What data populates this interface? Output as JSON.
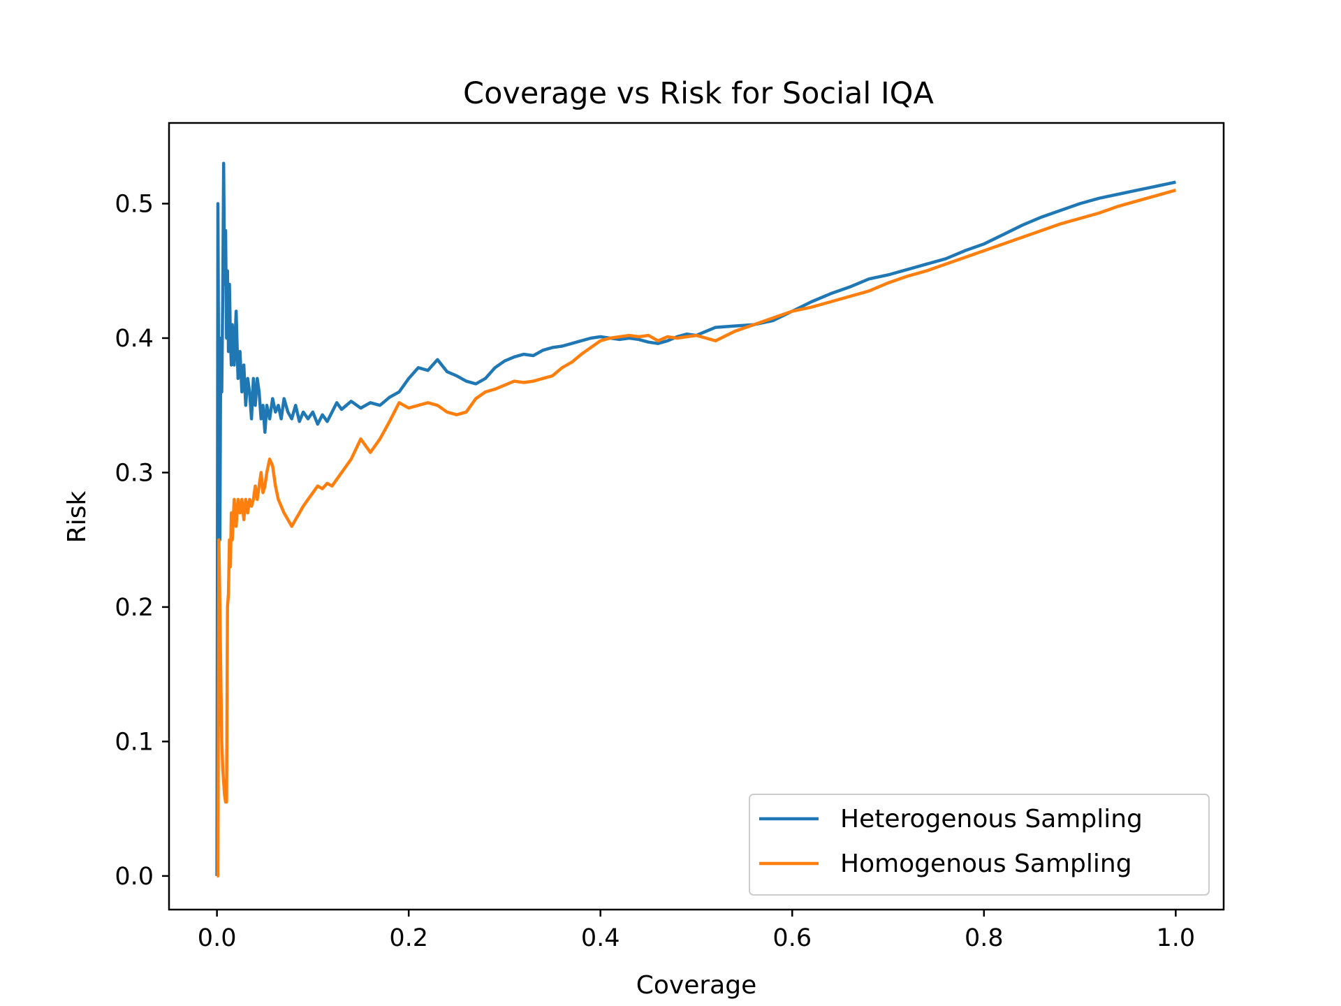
{
  "chart_data": {
    "type": "line",
    "title": "Coverage vs Risk for Social IQA",
    "xlabel": "Coverage",
    "ylabel": "Risk",
    "xlim": [
      -0.05,
      1.05
    ],
    "ylim": [
      -0.025,
      0.56
    ],
    "xticks": [
      0.0,
      0.2,
      0.4,
      0.6,
      0.8,
      1.0
    ],
    "xtick_labels": [
      "0.0",
      "0.2",
      "0.4",
      "0.6",
      "0.8",
      "1.0"
    ],
    "yticks": [
      0.0,
      0.1,
      0.2,
      0.3,
      0.4,
      0.5
    ],
    "ytick_labels": [
      "0.0",
      "0.1",
      "0.2",
      "0.3",
      "0.4",
      "0.5"
    ],
    "grid": false,
    "legend_position": "lower-right",
    "series": [
      {
        "name": "Heterogenous Sampling",
        "color": "#1f77b4",
        "x": [
          0.0,
          0.001,
          0.002,
          0.003,
          0.004,
          0.005,
          0.006,
          0.007,
          0.008,
          0.009,
          0.01,
          0.011,
          0.012,
          0.013,
          0.014,
          0.015,
          0.016,
          0.018,
          0.02,
          0.022,
          0.024,
          0.026,
          0.028,
          0.03,
          0.032,
          0.034,
          0.036,
          0.038,
          0.04,
          0.042,
          0.044,
          0.046,
          0.048,
          0.05,
          0.052,
          0.055,
          0.058,
          0.061,
          0.064,
          0.067,
          0.07,
          0.074,
          0.078,
          0.082,
          0.086,
          0.09,
          0.095,
          0.1,
          0.105,
          0.11,
          0.115,
          0.12,
          0.125,
          0.13,
          0.14,
          0.15,
          0.16,
          0.17,
          0.18,
          0.19,
          0.2,
          0.21,
          0.22,
          0.23,
          0.24,
          0.25,
          0.26,
          0.27,
          0.28,
          0.29,
          0.3,
          0.31,
          0.32,
          0.33,
          0.34,
          0.35,
          0.36,
          0.37,
          0.38,
          0.39,
          0.4,
          0.41,
          0.42,
          0.43,
          0.44,
          0.45,
          0.46,
          0.47,
          0.48,
          0.49,
          0.5,
          0.52,
          0.54,
          0.56,
          0.58,
          0.6,
          0.62,
          0.64,
          0.66,
          0.68,
          0.7,
          0.72,
          0.74,
          0.76,
          0.78,
          0.8,
          0.82,
          0.84,
          0.86,
          0.88,
          0.9,
          0.92,
          0.94,
          0.96,
          0.98,
          1.0
        ],
        "y": [
          0.0,
          0.5,
          0.33,
          0.25,
          0.4,
          0.36,
          0.43,
          0.53,
          0.44,
          0.48,
          0.4,
          0.45,
          0.39,
          0.44,
          0.4,
          0.38,
          0.41,
          0.38,
          0.42,
          0.37,
          0.39,
          0.36,
          0.38,
          0.35,
          0.37,
          0.36,
          0.34,
          0.37,
          0.35,
          0.37,
          0.36,
          0.34,
          0.35,
          0.33,
          0.35,
          0.34,
          0.355,
          0.345,
          0.35,
          0.34,
          0.355,
          0.345,
          0.34,
          0.35,
          0.338,
          0.345,
          0.34,
          0.345,
          0.336,
          0.343,
          0.338,
          0.345,
          0.352,
          0.347,
          0.353,
          0.348,
          0.352,
          0.35,
          0.356,
          0.36,
          0.37,
          0.378,
          0.376,
          0.384,
          0.375,
          0.372,
          0.368,
          0.366,
          0.37,
          0.378,
          0.383,
          0.386,
          0.388,
          0.387,
          0.391,
          0.393,
          0.394,
          0.396,
          0.398,
          0.4,
          0.401,
          0.4,
          0.399,
          0.4,
          0.399,
          0.397,
          0.396,
          0.398,
          0.401,
          0.403,
          0.402,
          0.408,
          0.409,
          0.41,
          0.413,
          0.42,
          0.427,
          0.433,
          0.438,
          0.444,
          0.447,
          0.451,
          0.455,
          0.459,
          0.465,
          0.47,
          0.477,
          0.484,
          0.49,
          0.495,
          0.5,
          0.504,
          0.507,
          0.51,
          0.513,
          0.516
        ]
      },
      {
        "name": "Homogenous Sampling",
        "color": "#ff7f0e",
        "x": [
          0.0,
          0.001,
          0.002,
          0.003,
          0.004,
          0.005,
          0.006,
          0.007,
          0.008,
          0.009,
          0.01,
          0.011,
          0.012,
          0.013,
          0.014,
          0.015,
          0.016,
          0.018,
          0.02,
          0.022,
          0.024,
          0.026,
          0.028,
          0.03,
          0.032,
          0.034,
          0.036,
          0.038,
          0.04,
          0.042,
          0.044,
          0.046,
          0.048,
          0.05,
          0.052,
          0.055,
          0.058,
          0.061,
          0.064,
          0.067,
          0.07,
          0.074,
          0.078,
          0.082,
          0.086,
          0.09,
          0.095,
          0.1,
          0.105,
          0.11,
          0.115,
          0.12,
          0.125,
          0.13,
          0.14,
          0.15,
          0.16,
          0.17,
          0.18,
          0.19,
          0.2,
          0.21,
          0.22,
          0.23,
          0.24,
          0.25,
          0.26,
          0.27,
          0.28,
          0.29,
          0.3,
          0.31,
          0.32,
          0.33,
          0.34,
          0.35,
          0.36,
          0.37,
          0.38,
          0.39,
          0.4,
          0.41,
          0.42,
          0.43,
          0.44,
          0.45,
          0.46,
          0.47,
          0.48,
          0.49,
          0.5,
          0.52,
          0.54,
          0.56,
          0.58,
          0.6,
          0.62,
          0.64,
          0.66,
          0.68,
          0.7,
          0.72,
          0.74,
          0.76,
          0.78,
          0.8,
          0.82,
          0.84,
          0.86,
          0.88,
          0.9,
          0.92,
          0.94,
          0.96,
          0.98,
          1.0
        ],
        "y": [
          0.0,
          0.0,
          0.25,
          0.2,
          0.15,
          0.1,
          0.08,
          0.07,
          0.06,
          0.055,
          0.055,
          0.2,
          0.21,
          0.25,
          0.23,
          0.27,
          0.25,
          0.28,
          0.26,
          0.28,
          0.27,
          0.28,
          0.265,
          0.28,
          0.27,
          0.28,
          0.275,
          0.28,
          0.29,
          0.28,
          0.29,
          0.3,
          0.285,
          0.29,
          0.3,
          0.31,
          0.305,
          0.29,
          0.28,
          0.275,
          0.27,
          0.265,
          0.26,
          0.265,
          0.27,
          0.275,
          0.28,
          0.285,
          0.29,
          0.288,
          0.292,
          0.29,
          0.295,
          0.3,
          0.31,
          0.325,
          0.315,
          0.325,
          0.338,
          0.352,
          0.348,
          0.35,
          0.352,
          0.35,
          0.345,
          0.343,
          0.345,
          0.355,
          0.36,
          0.362,
          0.365,
          0.368,
          0.367,
          0.368,
          0.37,
          0.372,
          0.378,
          0.382,
          0.388,
          0.393,
          0.398,
          0.4,
          0.401,
          0.402,
          0.401,
          0.402,
          0.398,
          0.401,
          0.4,
          0.401,
          0.402,
          0.398,
          0.405,
          0.41,
          0.415,
          0.42,
          0.423,
          0.427,
          0.431,
          0.435,
          0.441,
          0.446,
          0.45,
          0.455,
          0.46,
          0.465,
          0.47,
          0.475,
          0.48,
          0.485,
          0.489,
          0.493,
          0.498,
          0.502,
          0.506,
          0.51
        ]
      }
    ]
  }
}
